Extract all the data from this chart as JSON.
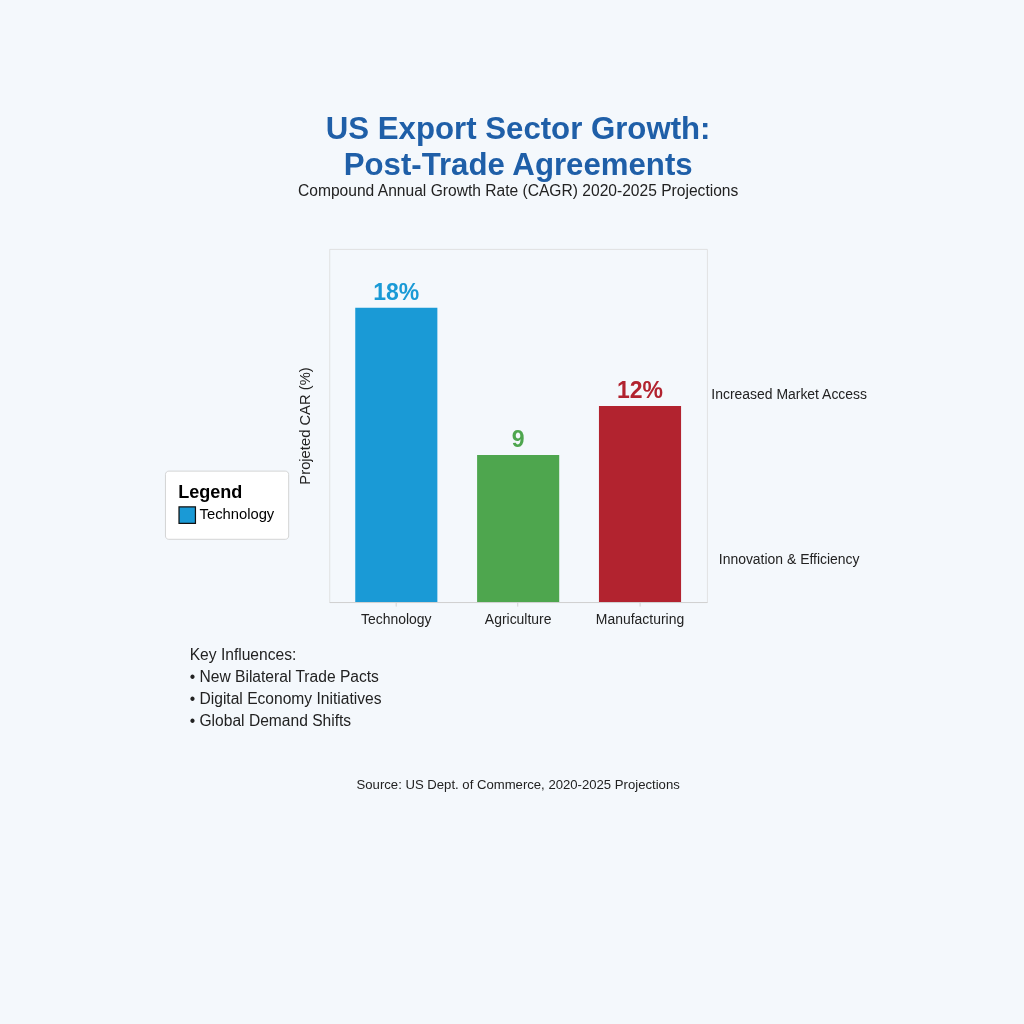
{
  "chart_data": {
    "type": "bar",
    "title": "US Export Sector Growth: Post-Trade Agreements",
    "subtitle": "Compound Annual Growth Rate (CAGR) 2020-2025 Projections",
    "ylabel": "Projeted CAR (%)",
    "legend_title": "Legend",
    "legend": "left",
    "categories": [
      "Technology",
      "Agriculture",
      "Manufacturing"
    ],
    "series": [
      {
        "name": "Technology",
        "color": "#1a9ad6",
        "values": [
          18,
          null,
          null
        ],
        "value_labels": [
          "18%",
          null,
          null
        ]
      },
      {
        "color": "#4ea64e",
        "values": [
          null,
          9,
          null
        ],
        "value_labels": [
          null,
          "9",
          null
        ]
      },
      {
        "color": "#b2232f",
        "values": [
          null,
          null,
          12
        ],
        "value_labels": [
          null,
          null,
          "12%"
        ]
      }
    ],
    "annotations": [
      "Increased Market Access",
      "Innovation & Efficiency",
      "Key Influences:\n• New Bilateral Trade Pacts\n• Digital Economy Initiatives\n• Global Demand Shifts",
      "Source: US Dept. of Commerce, 2020-2025 Projections"
    ]
  }
}
